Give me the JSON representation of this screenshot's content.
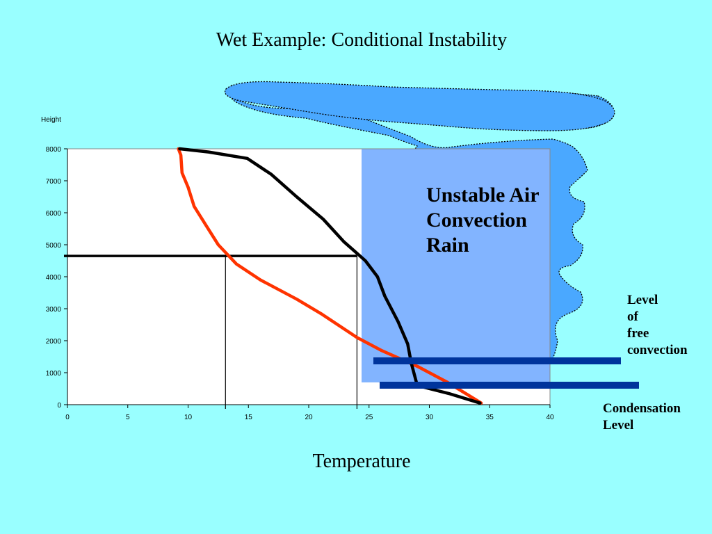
{
  "title": "Wet Example: Conditional Instability",
  "chart_data": {
    "type": "line",
    "ylabel": "Height",
    "xlabel": "Temperature",
    "xlim": [
      0,
      40
    ],
    "ylim": [
      0,
      8000
    ],
    "x_ticks": [
      0,
      5,
      10,
      15,
      20,
      25,
      30,
      35,
      40
    ],
    "y_ticks": [
      0,
      1000,
      2000,
      3000,
      4000,
      5000,
      6000,
      7000,
      8000
    ],
    "grid": false,
    "series": [
      {
        "color": "#ff3300",
        "points": [
          [
            34.3,
            50
          ],
          [
            31.5,
            700
          ],
          [
            29.0,
            1200
          ],
          [
            26.0,
            1700
          ],
          [
            24.0,
            2100
          ],
          [
            21.0,
            2850
          ],
          [
            19.0,
            3300
          ],
          [
            16.0,
            3900
          ],
          [
            14.0,
            4400
          ],
          [
            12.5,
            5000
          ],
          [
            11.5,
            5600
          ],
          [
            10.5,
            6200
          ],
          [
            10.0,
            6800
          ],
          [
            9.5,
            7250
          ],
          [
            9.4,
            7800
          ],
          [
            9.2,
            8000
          ]
        ]
      },
      {
        "color": "#000000",
        "points": [
          [
            34.2,
            50
          ],
          [
            31.6,
            350
          ],
          [
            29.0,
            600
          ],
          [
            28.5,
            1300
          ],
          [
            28.2,
            1900
          ],
          [
            27.4,
            2600
          ],
          [
            26.3,
            3400
          ],
          [
            25.7,
            4000
          ],
          [
            24.7,
            4500
          ],
          [
            22.9,
            5100
          ],
          [
            21.2,
            5800
          ],
          [
            19.0,
            6500
          ],
          [
            16.9,
            7200
          ],
          [
            14.9,
            7700
          ],
          [
            11.7,
            7900
          ],
          [
            9.3,
            8000
          ]
        ]
      }
    ],
    "markers": {
      "horizontal_line_height": 4650,
      "horizontal_line_x_end": 24,
      "vertical_lines_x": [
        13.1,
        24.0
      ]
    },
    "cloud_text": [
      "Unstable Air",
      "Convection",
      "Rain"
    ],
    "lfc_label": [
      "Level",
      "of",
      "free",
      "convection"
    ],
    "condensation_label": [
      "Condensation",
      "Level"
    ],
    "colors": {
      "background": "#99ffff",
      "cloud_outer": "#4aa8ff",
      "cloud_inner": "#82b4ff",
      "level_bars": "#00349c"
    }
  }
}
